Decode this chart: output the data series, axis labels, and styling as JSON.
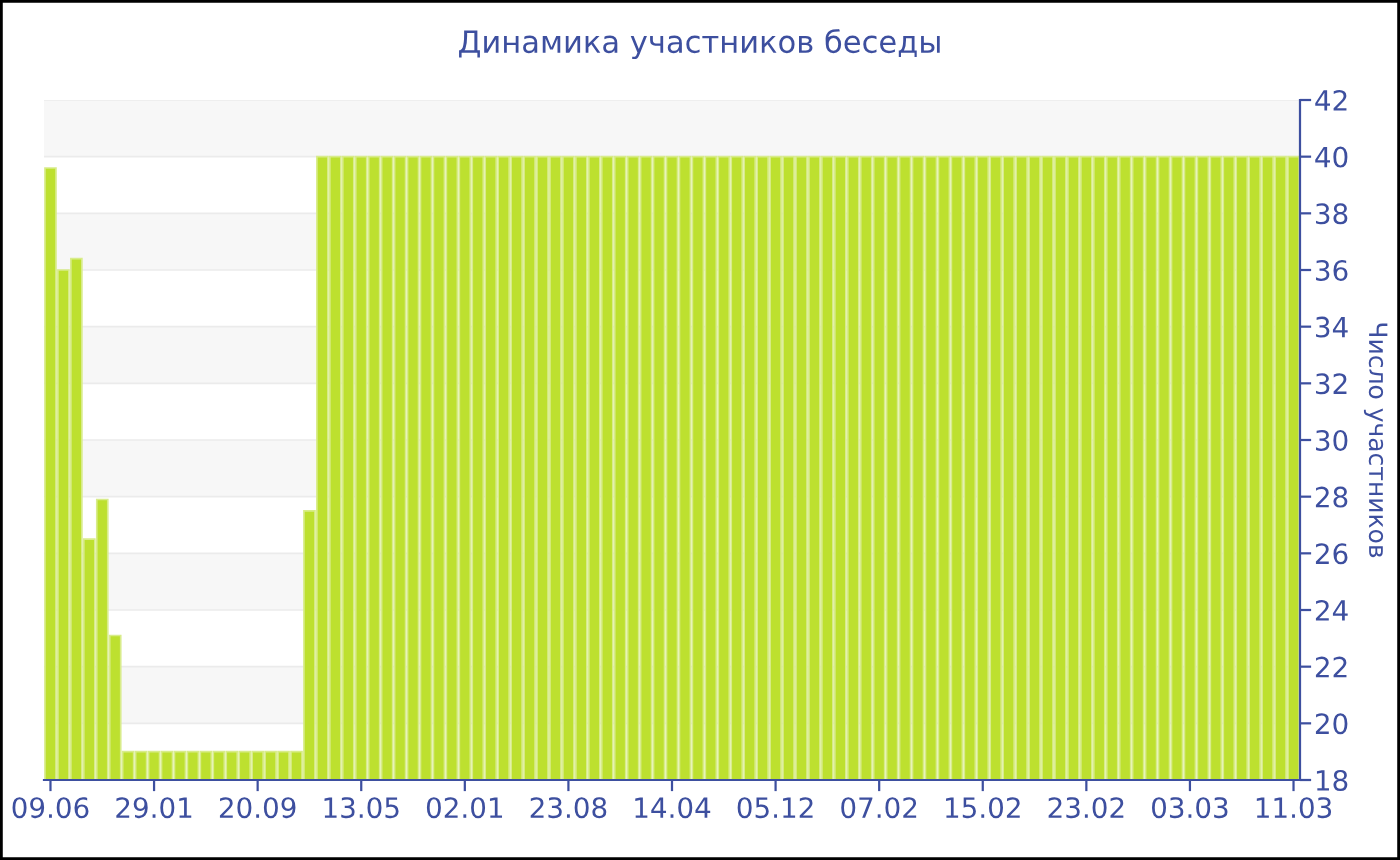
{
  "chart_data": {
    "type": "bar",
    "title": "Динамика участников беседы",
    "ylabel": "Число участников",
    "categories": [
      "09.06",
      null,
      null,
      null,
      null,
      null,
      null,
      null,
      "29.01",
      null,
      null,
      null,
      null,
      null,
      null,
      null,
      "20.09",
      null,
      null,
      null,
      null,
      null,
      null,
      null,
      "13.05",
      null,
      null,
      null,
      null,
      null,
      null,
      null,
      "02.01",
      null,
      null,
      null,
      null,
      null,
      null,
      null,
      "23.08",
      null,
      null,
      null,
      null,
      null,
      null,
      null,
      "14.04",
      null,
      null,
      null,
      null,
      null,
      null,
      null,
      "05.12",
      null,
      null,
      null,
      null,
      null,
      null,
      null,
      "07.02",
      null,
      null,
      null,
      null,
      null,
      null,
      null,
      "15.02",
      null,
      null,
      null,
      null,
      null,
      null,
      null,
      "23.02",
      null,
      null,
      null,
      null,
      null,
      null,
      null,
      "03.03",
      null,
      null,
      null,
      null,
      null,
      null,
      null,
      "11.03"
    ],
    "values": [
      39.6,
      36,
      36.4,
      26.5,
      27.9,
      23.1,
      19,
      19,
      19,
      19,
      19,
      19,
      19,
      19,
      19,
      19,
      19,
      19,
      19,
      19,
      27.5,
      40,
      40,
      40,
      40,
      40,
      40,
      40,
      40,
      40,
      40,
      40,
      40,
      40,
      40,
      40,
      40,
      40,
      40,
      40,
      40,
      40,
      40,
      40,
      40,
      40,
      40,
      40,
      40,
      40,
      40,
      40,
      40,
      40,
      40,
      40,
      40,
      40,
      40,
      40,
      40,
      40,
      40,
      40,
      40,
      40,
      40,
      40,
      40,
      40,
      40,
      40,
      40,
      40,
      40,
      40,
      40,
      40,
      40,
      40,
      40,
      40,
      40,
      40,
      40,
      40,
      40,
      40,
      40,
      40,
      40,
      40,
      40,
      40,
      40,
      40,
      40
    ],
    "color": "#bde02f",
    "ylim": [
      18,
      42
    ],
    "yticks": [
      18,
      20,
      22,
      24,
      26,
      28,
      30,
      32,
      34,
      36,
      38,
      40,
      42
    ],
    "grid": "y"
  }
}
